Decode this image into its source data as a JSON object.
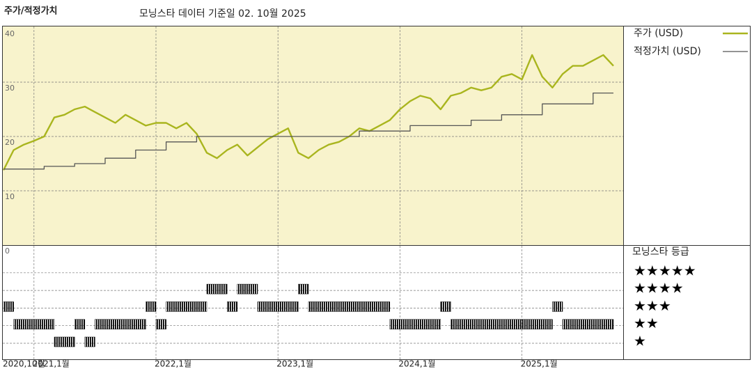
{
  "chart_data": [
    {
      "type": "line",
      "title": "주가/적정가치",
      "subtitle": "모닝스타 데이터 기준일 02. 10월 2025",
      "x": [
        "2020-10",
        "2020-11",
        "2020-12",
        "2021-01",
        "2021-02",
        "2021-03",
        "2021-04",
        "2021-05",
        "2021-06",
        "2021-07",
        "2021-08",
        "2021-09",
        "2021-10",
        "2021-11",
        "2021-12",
        "2022-01",
        "2022-02",
        "2022-03",
        "2022-04",
        "2022-05",
        "2022-06",
        "2022-07",
        "2022-08",
        "2022-09",
        "2022-10",
        "2022-11",
        "2022-12",
        "2023-01",
        "2023-02",
        "2023-03",
        "2023-04",
        "2023-05",
        "2023-06",
        "2023-07",
        "2023-08",
        "2023-09",
        "2023-10",
        "2023-11",
        "2023-12",
        "2024-01",
        "2024-02",
        "2024-03",
        "2024-04",
        "2024-05",
        "2024-06",
        "2024-07",
        "2024-08",
        "2024-09",
        "2024-10",
        "2024-11",
        "2024-12",
        "2025-01",
        "2025-02",
        "2025-03",
        "2025-04",
        "2025-05",
        "2025-06",
        "2025-07",
        "2025-08",
        "2025-09",
        "2025-10"
      ],
      "series": [
        {
          "name": "주가 (USD)",
          "color": "#a9b51e",
          "values": [
            13.8,
            17.5,
            18.5,
            19.2,
            20,
            23.5,
            24,
            25,
            25.5,
            24.5,
            23.5,
            22.5,
            24,
            23,
            22,
            22.5,
            22.5,
            21.5,
            22.5,
            20.5,
            17,
            16,
            17.5,
            18.5,
            16.5,
            18,
            19.5,
            20.5,
            21.5,
            17,
            16,
            17.5,
            18.5,
            19,
            20,
            21.5,
            21,
            22,
            23,
            25,
            26.5,
            27.5,
            27,
            25,
            27.5,
            28,
            29,
            28.5,
            29,
            31,
            31.5,
            30.5,
            35,
            31,
            29,
            31.5,
            33,
            33,
            34,
            35,
            33
          ]
        },
        {
          "name": "적정가치 (USD)",
          "color": "#555555",
          "drawstyle": "steps-post",
          "values": [
            14,
            14,
            14,
            14,
            14.5,
            14.5,
            14.5,
            15,
            15,
            15,
            16,
            16,
            16,
            17.5,
            17.5,
            17.5,
            19,
            19,
            19,
            20,
            20,
            20,
            20,
            20,
            20,
            20,
            20,
            20,
            20,
            20,
            20,
            20,
            20,
            20,
            20,
            21,
            21,
            21,
            21,
            21,
            22,
            22,
            22,
            22,
            22,
            22,
            23,
            23,
            23,
            24,
            24,
            24,
            24,
            26,
            26,
            26,
            26,
            26,
            28,
            28,
            28
          ]
        }
      ],
      "xlim": [
        "2020-10",
        "2025-10"
      ],
      "xticks": [
        {
          "value": "2020-10",
          "label": "2020,10월"
        },
        {
          "value": "2021-01",
          "label": "2021,1월"
        },
        {
          "value": "2022-01",
          "label": "2022,1월"
        },
        {
          "value": "2023-01",
          "label": "2023,1월"
        },
        {
          "value": "2024-01",
          "label": "2024,1월"
        },
        {
          "value": "2025-01",
          "label": "2025,1월"
        }
      ],
      "ylim": [
        0,
        40
      ],
      "yticks": [
        0,
        10,
        20,
        30,
        40
      ],
      "grid": true,
      "background": "#f8f3cc"
    },
    {
      "type": "timeline",
      "title": "모닝스타 등급",
      "ratings": [
        1,
        2,
        3,
        4,
        5
      ],
      "rating_labels": [
        "★",
        "★★",
        "★★★",
        "★★★★",
        "★★★★★"
      ],
      "color": "#000000",
      "periods": [
        {
          "from": "2020-10",
          "to": "2020-11",
          "rating": 3
        },
        {
          "from": "2020-11",
          "to": "2021-03",
          "rating": 2
        },
        {
          "from": "2021-03",
          "to": "2021-05",
          "rating": 1
        },
        {
          "from": "2021-05",
          "to": "2021-06",
          "rating": 2
        },
        {
          "from": "2021-06",
          "to": "2021-07",
          "rating": 1
        },
        {
          "from": "2021-07",
          "to": "2021-12",
          "rating": 2
        },
        {
          "from": "2021-12",
          "to": "2022-01",
          "rating": 3
        },
        {
          "from": "2022-01",
          "to": "2022-02",
          "rating": 2
        },
        {
          "from": "2022-02",
          "to": "2022-06",
          "rating": 3
        },
        {
          "from": "2022-06",
          "to": "2022-08",
          "rating": 4
        },
        {
          "from": "2022-08",
          "to": "2022-09",
          "rating": 3
        },
        {
          "from": "2022-09",
          "to": "2022-11",
          "rating": 4
        },
        {
          "from": "2022-11",
          "to": "2023-03",
          "rating": 3
        },
        {
          "from": "2023-03",
          "to": "2023-04",
          "rating": 4
        },
        {
          "from": "2023-04",
          "to": "2023-12",
          "rating": 3
        },
        {
          "from": "2023-12",
          "to": "2024-05",
          "rating": 2
        },
        {
          "from": "2024-05",
          "to": "2024-06",
          "rating": 3
        },
        {
          "from": "2024-06",
          "to": "2025-04",
          "rating": 2
        },
        {
          "from": "2025-04",
          "to": "2025-05",
          "rating": 3
        },
        {
          "from": "2025-05",
          "to": "2025-10",
          "rating": 2
        }
      ]
    }
  ]
}
